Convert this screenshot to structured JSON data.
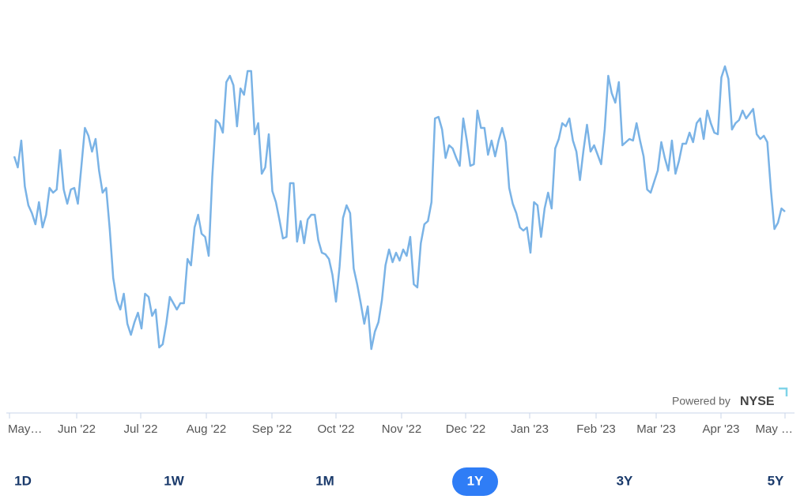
{
  "chart_data": {
    "type": "line",
    "series": [
      {
        "color": "#7ab3e6",
        "values": [
          70.5,
          67,
          75.5,
          61,
          55,
          52.5,
          49,
          56,
          48,
          52,
          60.5,
          59,
          60,
          72.5,
          60,
          55.5,
          60,
          60.5,
          55.5,
          67.5,
          79.5,
          77,
          72,
          76,
          66,
          59,
          60.5,
          47.5,
          32,
          25,
          22,
          27,
          17.5,
          14,
          18,
          21,
          16,
          27,
          26,
          20,
          22,
          10,
          11,
          17.5,
          26,
          24,
          22,
          24,
          24,
          38,
          36,
          48,
          52,
          46,
          45,
          39,
          64,
          82,
          81,
          78,
          94,
          96,
          93,
          80,
          92,
          90,
          97.5,
          97.5,
          77.5,
          81,
          65,
          67,
          77.5,
          59.5,
          56,
          50.5,
          44.5,
          45,
          62,
          62,
          43.5,
          50,
          43,
          50.5,
          52,
          52,
          44,
          40,
          39.5,
          38,
          33,
          24.5,
          35.5,
          51,
          55,
          52.5,
          35,
          30,
          24,
          17.5,
          23,
          9.5,
          15,
          18,
          25,
          36,
          41,
          37,
          40,
          37.5,
          41,
          39,
          45,
          30,
          29,
          43,
          49,
          50,
          56,
          82.5,
          83,
          79,
          70,
          74,
          73,
          70,
          67.5,
          82.5,
          75.5,
          67.5,
          68,
          85,
          79.5,
          79.5,
          71,
          75.5,
          70.5,
          75.5,
          79.5,
          75,
          60.5,
          55.5,
          52.5,
          48,
          47,
          48,
          40,
          56,
          55,
          45,
          54,
          59,
          54,
          73,
          76,
          81,
          80,
          82.5,
          75.5,
          72,
          63,
          72.5,
          80.5,
          72,
          74,
          71,
          68,
          79,
          96,
          90.5,
          87.5,
          94,
          74,
          75,
          76,
          75.5,
          81,
          75.5,
          70.5,
          60,
          59,
          62.5,
          66,
          75,
          70,
          66,
          75.5,
          65,
          69,
          74.5,
          74.5,
          78,
          75,
          81,
          82.5,
          76,
          85,
          81,
          78,
          77.5,
          95.5,
          99,
          95,
          79,
          81,
          82,
          85,
          82.5,
          84,
          85.5,
          77.5,
          76,
          77,
          75,
          60,
          47.5,
          49.5,
          54,
          53
        ]
      }
    ],
    "ylim": [
      0,
      100
    ],
    "xtick_labels": [
      "May…",
      "Jun '22",
      "Jul '22",
      "Aug '22",
      "Sep '22",
      "Oct '22",
      "Nov '22",
      "Dec '22",
      "Jan '23",
      "Feb '23",
      "Mar '23",
      "Apr '23",
      "May …"
    ]
  },
  "attribution": {
    "prefix": "Powered by",
    "brand": "NYSE"
  },
  "range_buttons": {
    "labels": [
      "1D",
      "1W",
      "1M",
      "1Y",
      "3Y",
      "5Y"
    ],
    "active_index": 3
  }
}
